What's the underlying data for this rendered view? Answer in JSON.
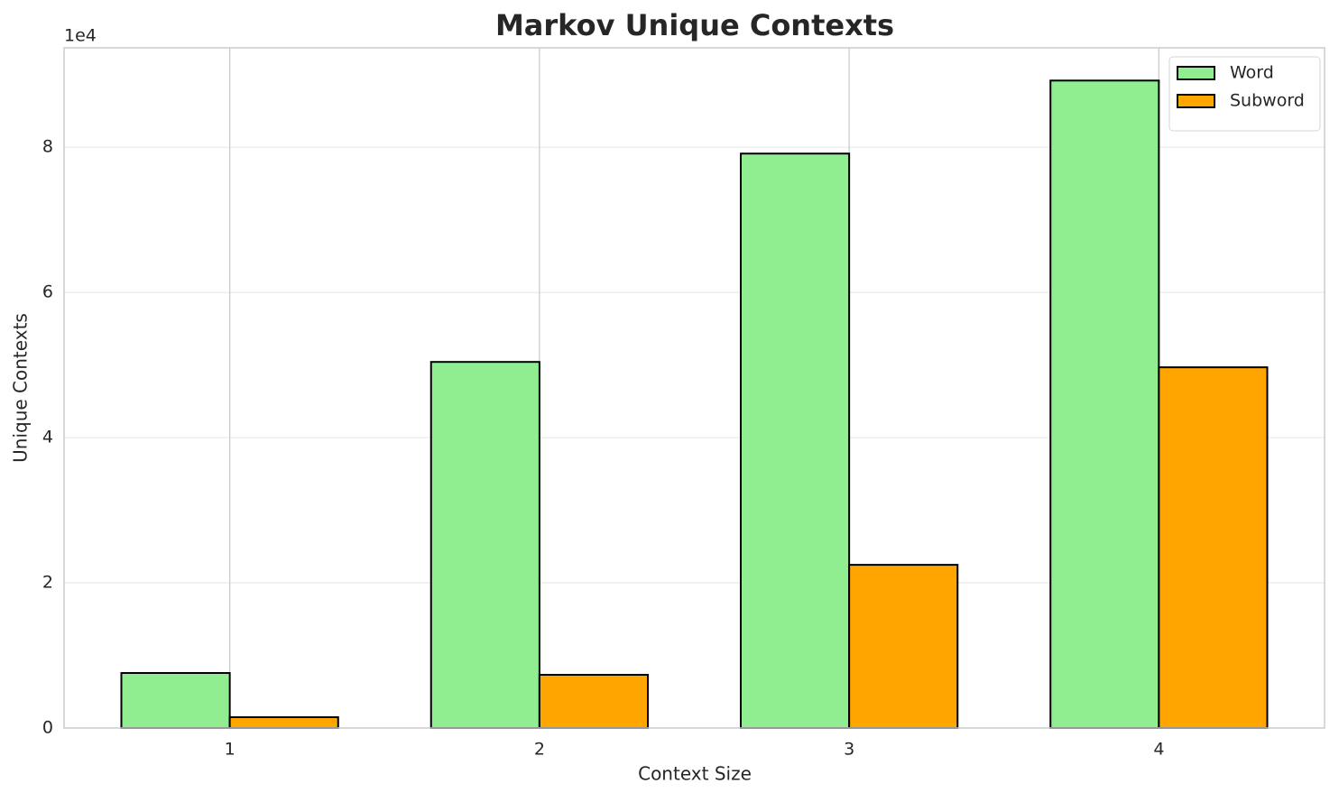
{
  "chart_data": {
    "type": "bar",
    "title": "Markov Unique Contexts",
    "xlabel": "Context Size",
    "ylabel": "Unique Contexts",
    "y_offset_label": "1e4",
    "categories": [
      "1",
      "2",
      "3",
      "4"
    ],
    "series": [
      {
        "name": "Word",
        "color": "#90ee90",
        "values": [
          7580,
          50430,
          79130,
          89190
        ]
      },
      {
        "name": "Subword",
        "color": "#ffa500",
        "values": [
          1490,
          7330,
          22480,
          49690
        ]
      }
    ],
    "ylim": [
      0,
      93700
    ],
    "yticks": [
      {
        "value": 0,
        "label": "0"
      },
      {
        "value": 20000,
        "label": "2"
      },
      {
        "value": 40000,
        "label": "4"
      },
      {
        "value": 60000,
        "label": "6"
      },
      {
        "value": 80000,
        "label": "8"
      }
    ],
    "grid": true,
    "legend": "upper right"
  }
}
